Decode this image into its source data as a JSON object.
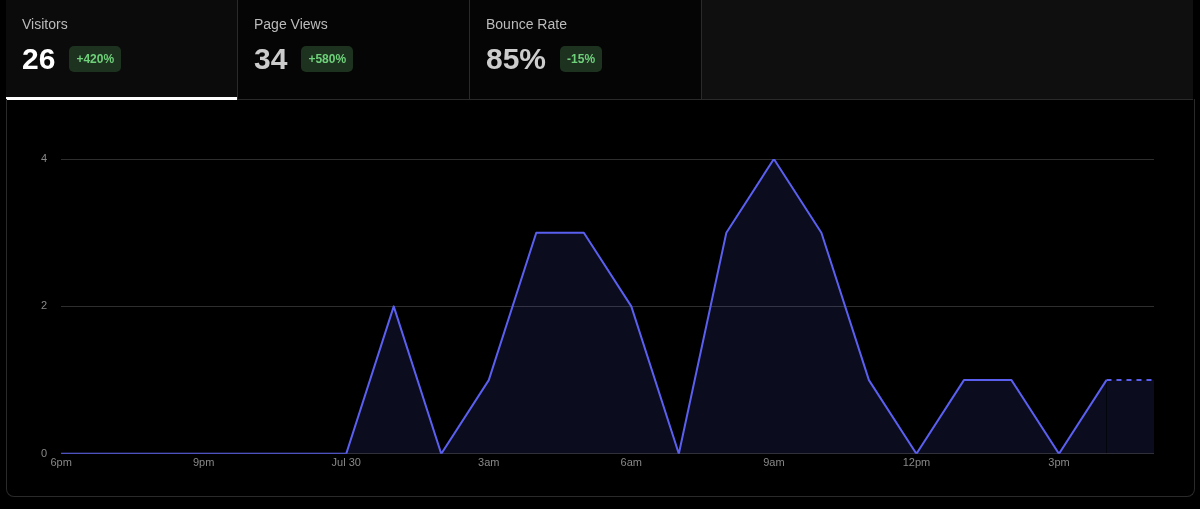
{
  "chart_data": [
    {
      "type": "other",
      "categories": [
        "Visitors",
        "Page Views",
        "Bounce Rate"
      ],
      "value_labels": [
        "26",
        "34",
        "85%"
      ],
      "annotations": [
        "+420%",
        "+580%",
        "-15%"
      ]
    },
    {
      "type": "area",
      "categories": [
        "6pm",
        null,
        null,
        "9pm",
        null,
        null,
        "Jul 30",
        null,
        null,
        "3am",
        null,
        null,
        "6am",
        null,
        null,
        "9am",
        null,
        null,
        "12pm",
        null,
        null,
        "3pm",
        null,
        null
      ],
      "series": [
        {
          "color": "#5a5ff0",
          "values": [
            0,
            0,
            0,
            0,
            0,
            0,
            0,
            2,
            0,
            1,
            3,
            3,
            2,
            0,
            3,
            4,
            3,
            1,
            0,
            1,
            1,
            0,
            1,
            null
          ],
          "line_style": "solid"
        },
        {
          "color": "#5a5ff0",
          "values": [
            null,
            null,
            null,
            null,
            null,
            null,
            null,
            null,
            null,
            null,
            null,
            null,
            null,
            null,
            null,
            null,
            null,
            null,
            null,
            null,
            null,
            null,
            1,
            1
          ],
          "line_style": "dashed"
        }
      ],
      "ylim": [
        0,
        4
      ],
      "yticks": [
        0,
        2,
        4
      ],
      "grid": "y",
      "legend": false,
      "marker": "none"
    }
  ]
}
